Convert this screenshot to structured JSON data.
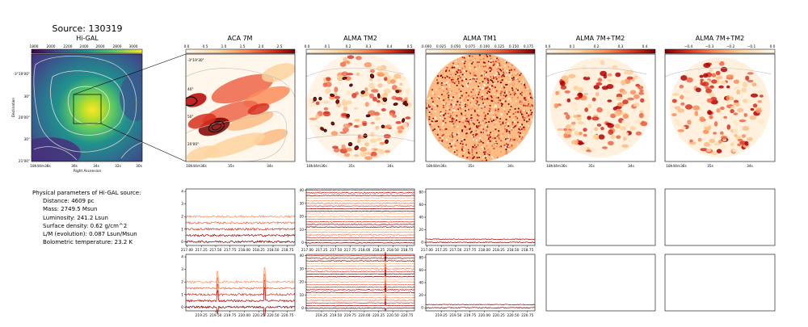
{
  "figure": {
    "title": "Source: 130319"
  },
  "colors": {
    "viridis_dark": "#440154",
    "viridis_mid": "#21918c",
    "viridis_light": "#fde725",
    "ylorrd_light": "#fff2d9",
    "ylorrd_dark": "#7f0000",
    "spectrum_lines": [
      "#7f0000",
      "#b30000",
      "#d7301f",
      "#ef6548",
      "#fc8d59",
      "#fdbb84"
    ],
    "contour_dark": "#222222",
    "contour_light": "#bbbbbb"
  },
  "physical_parameters": {
    "heading": "Physical parameters of Hi-GAL source:",
    "lines": [
      "Distance: 4609 pc",
      "Mass: 2749.5 Msun",
      "Luminosity: 241.2 Lsun",
      "Surface density: 0.62 g/cm^2",
      "L/M (evolution): 0.087 Lsun/Msun",
      "Bolometric temperature: 23.2 K"
    ]
  },
  "chart_data": [
    {
      "type": "heatmap",
      "title": "Hi-GAL",
      "colormap": "viridis",
      "colorbar_ticks": [
        "1800",
        "2000",
        "2200",
        "2400",
        "2600",
        "2800",
        "3000"
      ],
      "xlabel": "Right Ascension",
      "ylabel": "Declination",
      "x_ticks": [
        "18h44m38s",
        "36s",
        "34s",
        "32s",
        "30s"
      ],
      "y_ticks": [
        "-3°19'00\"",
        "30\"",
        "20'00\"",
        "30\"",
        "21'00\""
      ],
      "contours": true,
      "zoom_box": true
    },
    {
      "type": "heatmap",
      "title": "ACA 7M",
      "colormap": "OrRd",
      "colorbar_ticks": [
        "0.0",
        "0.5",
        "1.0",
        "1.5",
        "2.0",
        "2.5"
      ],
      "x_ticks": [
        "18h44m36s",
        "35s",
        "34s"
      ],
      "y_ticks": [
        "-3°19'30\"",
        "40\"",
        "50\"",
        "20'00\""
      ]
    },
    {
      "type": "heatmap",
      "title": "ALMA TM2",
      "colormap": "OrRd",
      "colorbar_ticks": [
        "0.0",
        "0.1",
        "0.2",
        "0.3",
        "0.4",
        "0.5"
      ],
      "x_ticks": [
        "18h44m36s",
        "35s",
        "34s"
      ]
    },
    {
      "type": "heatmap",
      "title": "ALMA TM1",
      "colormap": "OrRd",
      "colorbar_ticks": [
        "0.000",
        "0.025",
        "0.050",
        "0.075",
        "0.100",
        "0.125",
        "0.150",
        "0.175"
      ],
      "x_ticks": [
        "18h44m36s",
        "35s",
        "34s"
      ]
    },
    {
      "type": "heatmap",
      "title": "ALMA 7M+TM2",
      "colormap": "OrRd",
      "colorbar_ticks": [
        "0.0",
        "0.1",
        "0.2",
        "0.3",
        "0.4"
      ],
      "x_ticks": [
        "18h44m36s",
        "35s",
        "34s"
      ]
    },
    {
      "type": "heatmap",
      "title": "ALMA 7M+TM2",
      "colormap": "OrRd",
      "colorbar_ticks": [
        "−0.4",
        "−0.3",
        "−0.2",
        "−0.1",
        "0.0"
      ],
      "x_ticks": [
        "18h44m36s",
        "35s",
        "34s"
      ]
    },
    {
      "type": "line",
      "panel": "ACA 7M spectra (upper)",
      "ylim": [
        -0.3,
        4.2
      ],
      "y_ticks": [
        "0",
        "1",
        "2",
        "3",
        "4"
      ],
      "x_ticks": [
        "217.00",
        "217.25",
        "217.50",
        "217.75",
        "218.00",
        "218.25",
        "218.50",
        "218.75"
      ],
      "xlim": [
        216.98,
        218.88
      ],
      "offsets": [
        0,
        0.5,
        1.0,
        1.5,
        2.0
      ],
      "noise": 0.08,
      "spikes": []
    },
    {
      "type": "line",
      "panel": "ALMA TM2 spectra (upper)",
      "ylim": [
        -2,
        41
      ],
      "y_ticks": [
        "0",
        "10",
        "20",
        "30",
        "40"
      ],
      "x_ticks": [
        "217.00",
        "217.25",
        "217.50",
        "217.75",
        "218.00",
        "218.25",
        "218.50",
        "218.75"
      ],
      "xlim": [
        216.98,
        218.88
      ],
      "offsets": [
        0,
        2,
        4,
        6,
        8,
        10,
        12,
        14,
        16,
        18,
        20,
        22,
        24,
        26,
        28,
        30,
        32,
        34,
        36,
        38,
        40
      ],
      "noise": 0.25,
      "spikes": []
    },
    {
      "type": "line",
      "panel": "ALMA TM1 spectra (upper)",
      "ylim": [
        -5,
        85
      ],
      "y_ticks": [
        "0",
        "20",
        "40",
        "60",
        "80"
      ],
      "x_ticks": [
        "217.00",
        "217.25",
        "217.50",
        "217.75",
        "218.00",
        "218.25",
        "218.50",
        "218.75"
      ],
      "xlim": [
        216.98,
        218.88
      ],
      "offsets": [
        0,
        5
      ],
      "noise": 0.6,
      "spikes": []
    },
    {
      "type": "line",
      "panel": "ACA 7M spectra (lower)",
      "ylim": [
        -0.3,
        4.2
      ],
      "y_ticks": [
        "0",
        "1",
        "2",
        "3",
        "4"
      ],
      "x_ticks": [
        "219.25",
        "219.50",
        "219.75",
        "220.00",
        "220.25",
        "220.50",
        "220.75"
      ],
      "xlim": [
        218.98,
        220.88
      ],
      "offsets": [
        0,
        0.5,
        1.0,
        1.5,
        2.0
      ],
      "noise": 0.08,
      "spikes": [
        {
          "x": 219.53,
          "height": 0.8
        },
        {
          "x": 220.35,
          "height": 1.1
        }
      ]
    },
    {
      "type": "line",
      "panel": "ALMA TM2 spectra (lower)",
      "ylim": [
        -2,
        41
      ],
      "y_ticks": [
        "0",
        "10",
        "20",
        "30",
        "40"
      ],
      "x_ticks": [
        "219.25",
        "219.50",
        "219.75",
        "220.00",
        "220.25",
        "220.50",
        "220.75"
      ],
      "xlim": [
        218.98,
        220.88
      ],
      "offsets": [
        0,
        2,
        4,
        6,
        8,
        10,
        12,
        14,
        16,
        18,
        20,
        22,
        24,
        26,
        28,
        30,
        32,
        34,
        36,
        38,
        40
      ],
      "noise": 0.25,
      "spikes": [
        {
          "x": 220.37,
          "height": 3
        }
      ]
    },
    {
      "type": "line",
      "panel": "ALMA TM1 spectra (lower)",
      "ylim": [
        -5,
        85
      ],
      "y_ticks": [
        "0",
        "20",
        "40",
        "60",
        "80"
      ],
      "x_ticks": [
        "219.25",
        "219.50",
        "219.75",
        "220.00",
        "220.25",
        "220.50",
        "220.75"
      ],
      "xlim": [
        218.98,
        220.88
      ],
      "offsets": [
        0,
        5
      ],
      "noise": 0.6,
      "spikes": []
    },
    {
      "type": "line",
      "panel": "ALMA 7M+TM2 spectra (upper, empty)",
      "empty": true
    },
    {
      "type": "line",
      "panel": "ALMA 7M+TM2 spectra (upper, empty, second)",
      "empty": true
    },
    {
      "type": "line",
      "panel": "ALMA 7M+TM2 spectra (lower, empty)",
      "empty": true
    },
    {
      "type": "line",
      "panel": "ALMA 7M+TM2 spectra (lower, empty, second)",
      "empty": true
    }
  ]
}
